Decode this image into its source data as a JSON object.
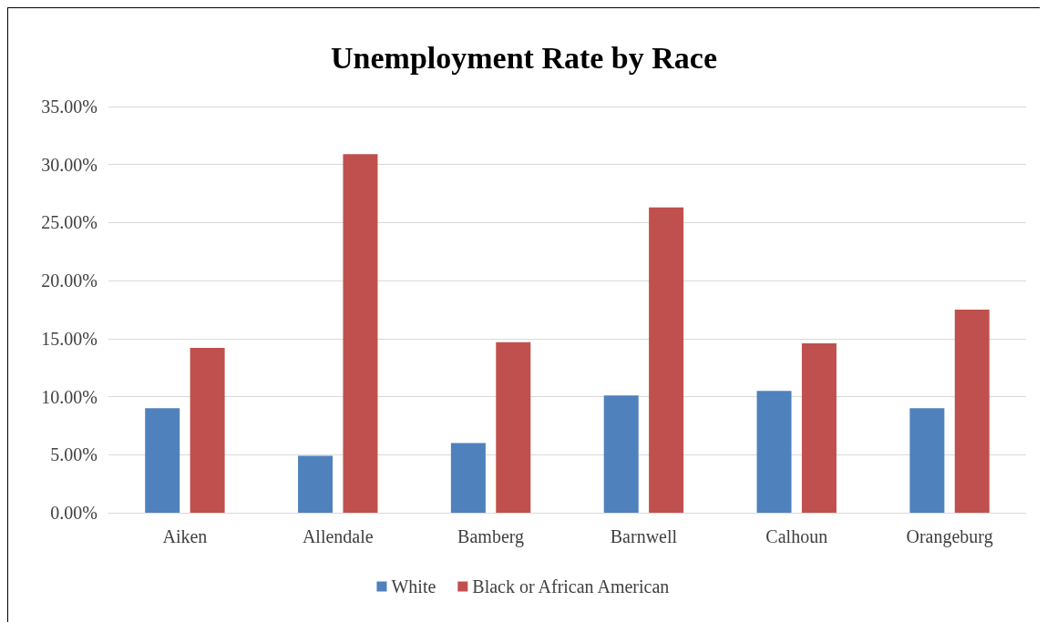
{
  "chart_data": {
    "type": "bar",
    "title": "Unemployment Rate by Race",
    "categories": [
      "Aiken",
      "Allendale",
      "Bamberg",
      "Barnwell",
      "Calhoun",
      "Orangeburg"
    ],
    "series": [
      {
        "name": "White",
        "color": "#4f81bd",
        "values": [
          9.0,
          4.9,
          6.0,
          10.1,
          10.5,
          9.0
        ]
      },
      {
        "name": "Black or African American",
        "color": "#c0504d",
        "values": [
          14.2,
          30.9,
          14.7,
          26.3,
          14.6,
          17.5
        ]
      }
    ],
    "ylim": [
      0,
      35
    ],
    "yticks": [
      {
        "value": 0,
        "label": "0.00%"
      },
      {
        "value": 5,
        "label": "5.00%"
      },
      {
        "value": 10,
        "label": "10.00%"
      },
      {
        "value": 15,
        "label": "15.00%"
      },
      {
        "value": 20,
        "label": "20.00%"
      },
      {
        "value": 25,
        "label": "25.00%"
      },
      {
        "value": 30,
        "label": "30.00%"
      },
      {
        "value": 35,
        "label": "35.00%"
      }
    ],
    "grid": "y",
    "legend": "bottom"
  }
}
